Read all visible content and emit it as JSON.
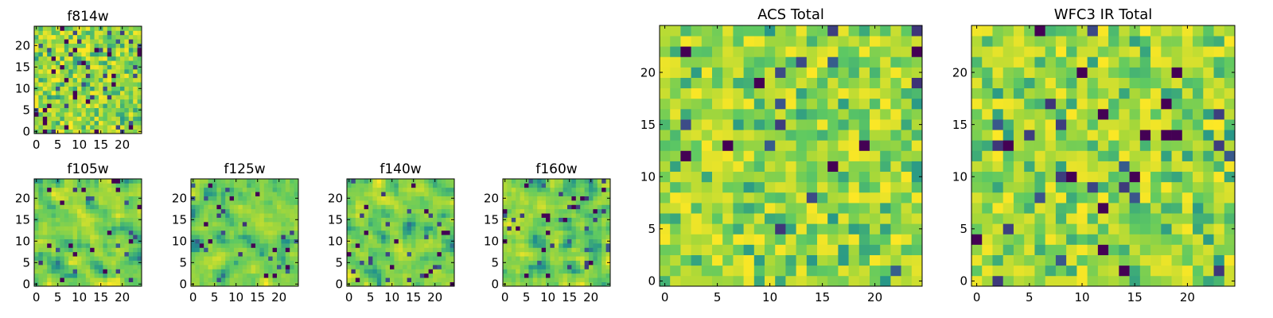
{
  "figure": {
    "background": "#ffffff"
  },
  "colormap": {
    "name": "viridis",
    "stops": [
      "#440154",
      "#3b528b",
      "#21918c",
      "#5ec962",
      "#a8d838",
      "#fde725"
    ]
  },
  "chart_data": [
    {
      "type": "heatmap",
      "title": "f814w",
      "rows": 25,
      "cols": 25,
      "x_ticks": [
        "0",
        "5",
        "10",
        "15",
        "20"
      ],
      "y_ticks": [
        "0",
        "5",
        "10",
        "15",
        "20"
      ],
      "xlim": [
        0,
        24
      ],
      "ylim": [
        0,
        24
      ],
      "texture": "pixel_noise",
      "dark_fraction": 0.08,
      "seed": 814
    },
    {
      "type": "heatmap",
      "title": "f105w",
      "rows": 25,
      "cols": 25,
      "x_ticks": [
        "0",
        "5",
        "10",
        "15",
        "20"
      ],
      "y_ticks": [
        "0",
        "5",
        "10",
        "15",
        "20"
      ],
      "xlim": [
        0,
        24
      ],
      "ylim": [
        0,
        24
      ],
      "texture": "smooth_noise",
      "dark_fraction": 0.05,
      "seed": 105
    },
    {
      "type": "heatmap",
      "title": "f125w",
      "rows": 25,
      "cols": 25,
      "x_ticks": [
        "0",
        "5",
        "10",
        "15",
        "20"
      ],
      "y_ticks": [
        "0",
        "5",
        "10",
        "15",
        "20"
      ],
      "xlim": [
        0,
        24
      ],
      "ylim": [
        0,
        24
      ],
      "texture": "smooth_noise",
      "dark_fraction": 0.05,
      "seed": 125
    },
    {
      "type": "heatmap",
      "title": "f140w",
      "rows": 25,
      "cols": 25,
      "x_ticks": [
        "0",
        "5",
        "10",
        "15",
        "20"
      ],
      "y_ticks": [
        "0",
        "5",
        "10",
        "15",
        "20"
      ],
      "xlim": [
        0,
        24
      ],
      "ylim": [
        0,
        24
      ],
      "texture": "smooth_noise",
      "dark_fraction": 0.05,
      "seed": 140
    },
    {
      "type": "heatmap",
      "title": "f160w",
      "rows": 25,
      "cols": 25,
      "x_ticks": [
        "0",
        "5",
        "10",
        "15",
        "20"
      ],
      "y_ticks": [
        "0",
        "5",
        "10",
        "15",
        "20"
      ],
      "xlim": [
        0,
        24
      ],
      "ylim": [
        0,
        24
      ],
      "texture": "smooth_noise",
      "dark_fraction": 0.05,
      "seed": 160
    },
    {
      "type": "heatmap",
      "title": "ACS Total",
      "rows": 25,
      "cols": 25,
      "x_ticks": [
        "0",
        "5",
        "10",
        "15",
        "20"
      ],
      "y_ticks": [
        "0",
        "5",
        "10",
        "15",
        "20"
      ],
      "xlim": [
        0,
        24
      ],
      "ylim": [
        0,
        24
      ],
      "texture": "pixel_noise",
      "dark_fraction": 0.035,
      "seed": 901
    },
    {
      "type": "heatmap",
      "title": "WFC3 IR Total",
      "rows": 25,
      "cols": 25,
      "x_ticks": [
        "0",
        "5",
        "10",
        "15",
        "20"
      ],
      "y_ticks": [
        "0",
        "5",
        "10",
        "15",
        "20"
      ],
      "xlim": [
        0,
        24
      ],
      "ylim": [
        0,
        24
      ],
      "texture": "pixel_noise",
      "dark_fraction": 0.05,
      "seed": 902
    }
  ]
}
